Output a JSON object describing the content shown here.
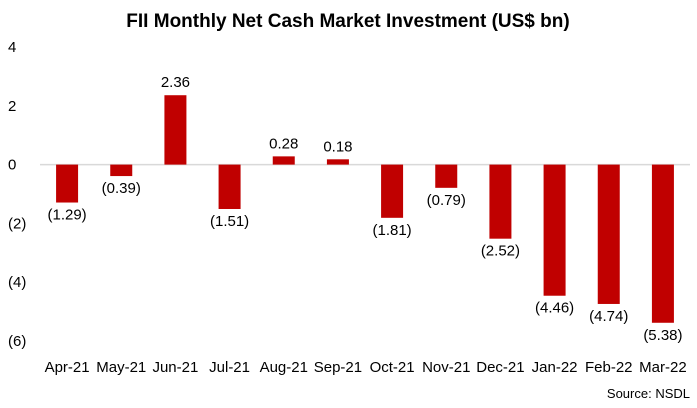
{
  "chart_data": {
    "type": "bar",
    "title": "FII Monthly Net Cash Market Investment (US$ bn)",
    "xlabel": "",
    "ylabel": "",
    "categories": [
      "Apr-21",
      "May-21",
      "Jun-21",
      "Jul-21",
      "Aug-21",
      "Sep-21",
      "Oct-21",
      "Nov-21",
      "Dec-21",
      "Jan-22",
      "Feb-22",
      "Mar-22"
    ],
    "values": [
      -1.29,
      -0.39,
      2.36,
      -1.51,
      0.28,
      0.18,
      -1.81,
      -0.79,
      -2.52,
      -4.46,
      -4.74,
      -5.38
    ],
    "data_labels": [
      "(1.29)",
      "(0.39)",
      "2.36",
      "(1.51)",
      "0.28",
      "0.18",
      "(1.81)",
      "(0.79)",
      "(2.52)",
      "(4.46)",
      "(4.74)",
      "(5.38)"
    ],
    "ylim": [
      -6,
      4
    ],
    "yticks": [
      4,
      2,
      0,
      -2,
      -4,
      -6
    ],
    "ytick_labels": [
      "4",
      "2",
      "0",
      "(2)",
      "(4)",
      "(6)"
    ],
    "grid": false,
    "legend": "none",
    "bar_color": "#c00000",
    "axis_color": "#d9d9d9",
    "source": "Source: NSDL"
  }
}
